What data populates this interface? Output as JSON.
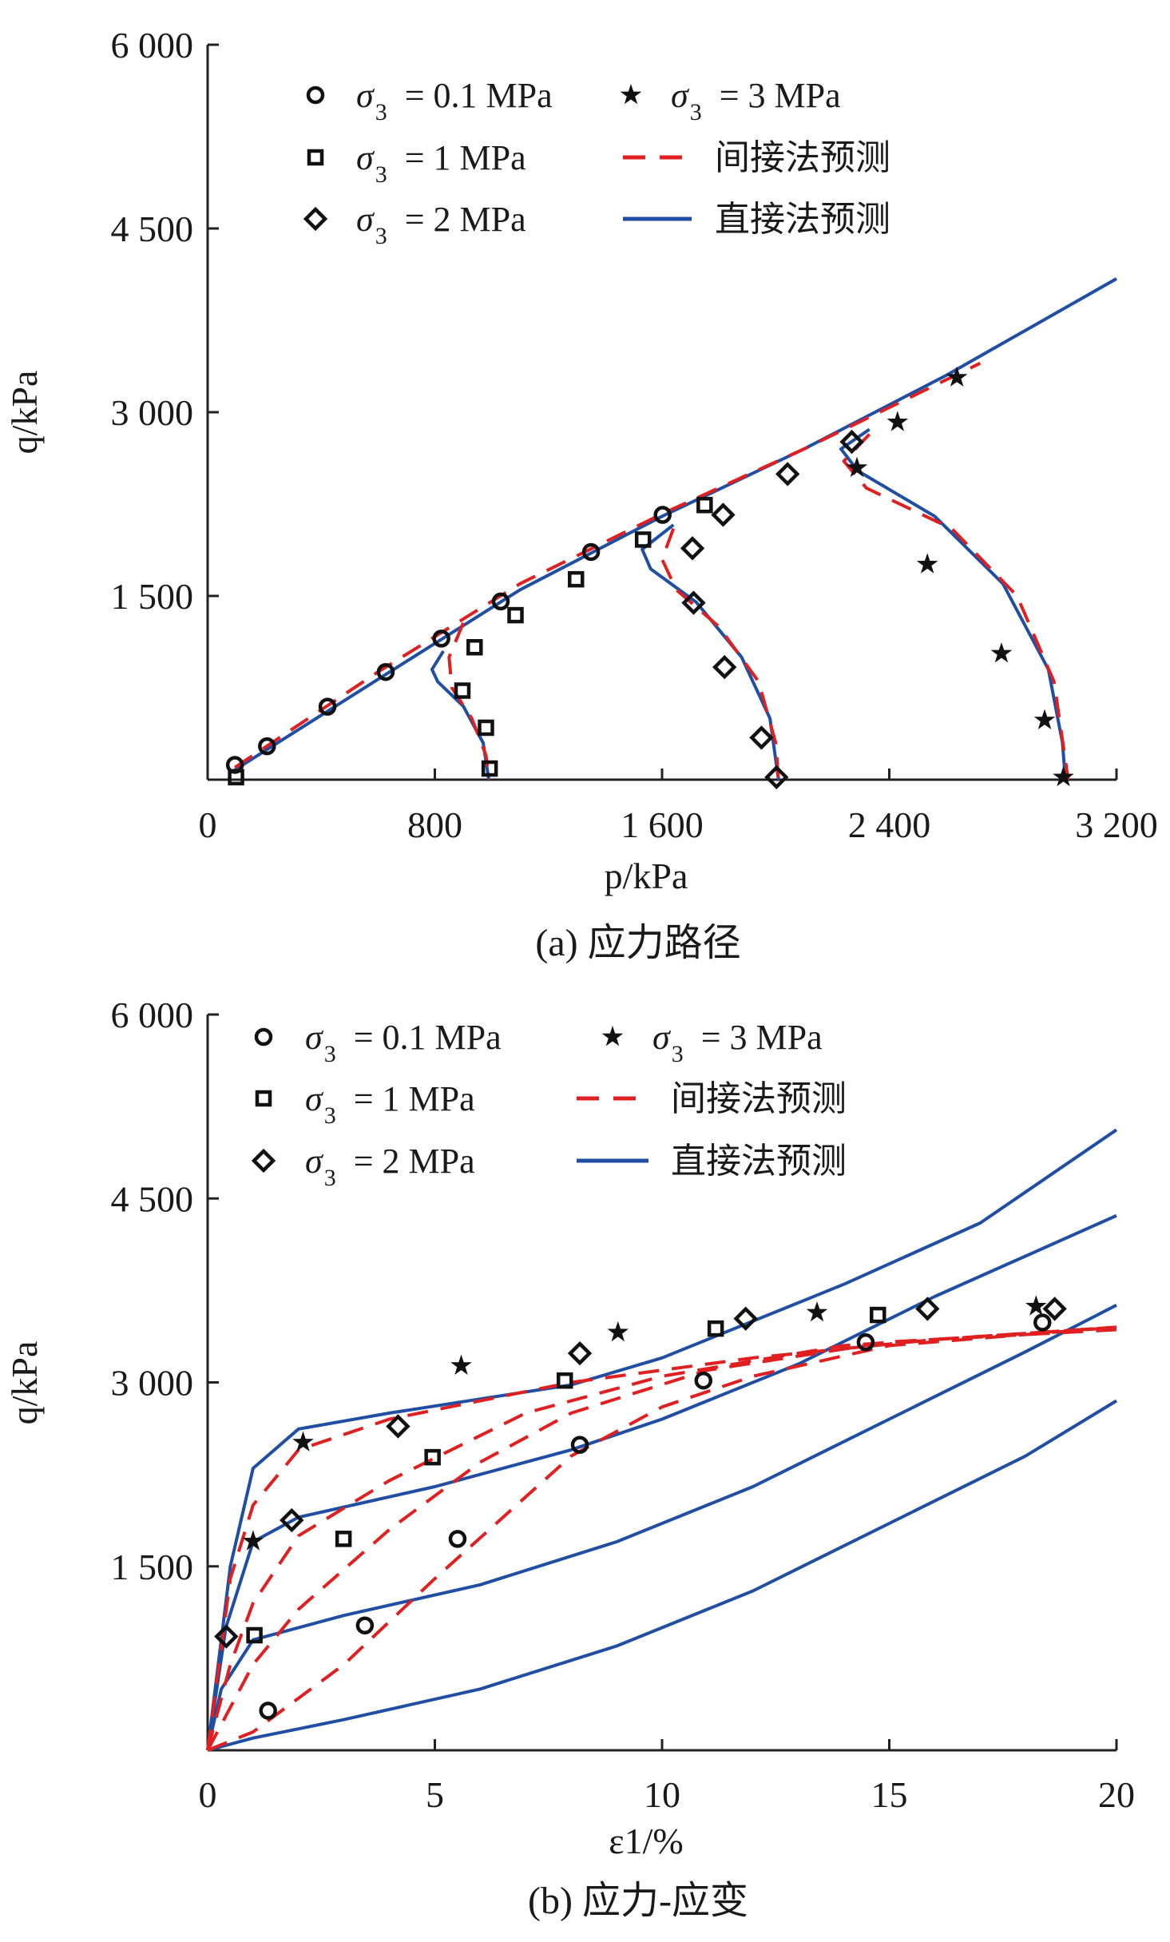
{
  "colors": {
    "indirect": "#e02020",
    "direct": "#1f4ea3",
    "markers": "#111111"
  },
  "chart_data": [
    {
      "type": "scatter",
      "caption": "(a) 应力路径",
      "xlabel": "p/kPa",
      "ylabel": "q/kPa",
      "xlim": [
        0,
        3200
      ],
      "ylim": [
        0,
        6000
      ],
      "xticks": [
        0,
        800,
        1600,
        2400,
        3200
      ],
      "xtick_labels": [
        "0",
        "800",
        "1 600",
        "2 400",
        "3 200"
      ],
      "yticks": [
        1500,
        3000,
        4500,
        6000
      ],
      "ytick_labels": [
        "1 500",
        "3 000",
        "4 500",
        "6 000"
      ],
      "legend": {
        "placement": "top-left",
        "entries": [
          {
            "marker": "circle",
            "symbol": "σ",
            "sub": "3",
            "text": "= 0.1 MPa"
          },
          {
            "marker": "square",
            "symbol": "σ",
            "sub": "3",
            "text": "= 1 MPa"
          },
          {
            "marker": "diamond",
            "symbol": "σ",
            "sub": "3",
            "text": "= 2 MPa"
          },
          {
            "marker": "star",
            "symbol": "σ",
            "sub": "3",
            "text": "= 3 MPa"
          },
          {
            "marker": "dashed",
            "text": "间接法预测"
          },
          {
            "marker": "solid",
            "text": "直接法预测"
          }
        ]
      },
      "series": [
        {
          "name": "σ3 = 0.1 MPa",
          "marker": "circle",
          "points": [
            [
              96,
              121
            ],
            [
              209,
              273
            ],
            [
              422,
              596
            ],
            [
              627,
              879
            ],
            [
              823,
              1152
            ],
            [
              1032,
              1455
            ],
            [
              1350,
              1859
            ],
            [
              1602,
              2162
            ]
          ]
        },
        {
          "name": "σ3 = 1 MPa",
          "marker": "square",
          "points": [
            [
              100,
              20
            ],
            [
              993,
              91
            ],
            [
              980,
              424
            ],
            [
              897,
              727
            ],
            [
              940,
              1081
            ],
            [
              1084,
              1343
            ],
            [
              1297,
              1636
            ],
            [
              1533,
              1960
            ],
            [
              1750,
              2242
            ]
          ]
        },
        {
          "name": "σ3 = 2 MPa",
          "marker": "diamond",
          "points": [
            [
              2003,
              20
            ],
            [
              1950,
              343
            ],
            [
              1820,
              919
            ],
            [
              1711,
              1444
            ],
            [
              1707,
              1889
            ],
            [
              1815,
              2162
            ],
            [
              2042,
              2495
            ],
            [
              2268,
              2758
            ]
          ]
        },
        {
          "name": "σ3 = 3 MPa",
          "marker": "star",
          "points": [
            [
              3013,
              20
            ],
            [
              2947,
              485
            ],
            [
              2795,
              1030
            ],
            [
              2534,
              1758
            ],
            [
              2286,
              2545
            ],
            [
              2429,
              2919
            ],
            [
              2638,
              3283
            ]
          ]
        }
      ],
      "lines": [
        {
          "name": "直接法预测 envelope",
          "style": "solid",
          "points": [
            [
              96,
              80
            ],
            [
              600,
              820
            ],
            [
              1100,
              1550
            ],
            [
              1600,
              2150
            ],
            [
              2100,
              2700
            ],
            [
              2600,
              3300
            ],
            [
              3200,
              4090
            ]
          ]
        },
        {
          "name": "直接法预测 σ3=1",
          "style": "solid",
          "points": [
            [
              830,
              1050
            ],
            [
              790,
              900
            ],
            [
              810,
              800
            ],
            [
              900,
              600
            ],
            [
              970,
              300
            ],
            [
              990,
              0
            ]
          ]
        },
        {
          "name": "直接法预测 σ3=2",
          "style": "solid",
          "points": [
            [
              1640,
              2080
            ],
            [
              1530,
              1880
            ],
            [
              1560,
              1720
            ],
            [
              1720,
              1450
            ],
            [
              1880,
              1000
            ],
            [
              1980,
              500
            ],
            [
              2010,
              0
            ]
          ]
        },
        {
          "name": "直接法预测 σ3=3",
          "style": "solid",
          "points": [
            [
              2330,
              2860
            ],
            [
              2230,
              2700
            ],
            [
              2290,
              2520
            ],
            [
              2560,
              2150
            ],
            [
              2800,
              1600
            ],
            [
              2960,
              900
            ],
            [
              3010,
              300
            ],
            [
              3020,
              0
            ]
          ]
        },
        {
          "name": "间接法预测 envelope",
          "style": "dashed",
          "points": [
            [
              96,
              100
            ],
            [
              600,
              880
            ],
            [
              1100,
              1600
            ],
            [
              1600,
              2170
            ],
            [
              2100,
              2700
            ],
            [
              2720,
              3400
            ]
          ]
        },
        {
          "name": "间接法预测 σ3=1",
          "style": "dashed",
          "points": [
            [
              900,
              1280
            ],
            [
              850,
              1000
            ],
            [
              860,
              750
            ],
            [
              930,
              500
            ],
            [
              980,
              200
            ],
            [
              990,
              0
            ]
          ]
        },
        {
          "name": "间接法预测 σ3=2",
          "style": "dashed",
          "points": [
            [
              1640,
              2050
            ],
            [
              1600,
              1800
            ],
            [
              1650,
              1550
            ],
            [
              1800,
              1250
            ],
            [
              1940,
              800
            ],
            [
              2000,
              300
            ],
            [
              2010,
              0
            ]
          ]
        },
        {
          "name": "间接法预测 σ3=3",
          "style": "dashed",
          "points": [
            [
              2330,
              2820
            ],
            [
              2240,
              2600
            ],
            [
              2320,
              2380
            ],
            [
              2620,
              2050
            ],
            [
              2850,
              1500
            ],
            [
              2980,
              800
            ],
            [
              3030,
              0
            ]
          ]
        }
      ]
    },
    {
      "type": "scatter",
      "caption": "(b) 应力-应变",
      "xlabel": "ε1/%",
      "xlabel_symbol": "ε",
      "xlabel_sub": "1",
      "xlabel_unit": "/%",
      "ylabel": "q/kPa",
      "xlim": [
        0,
        20
      ],
      "ylim": [
        0,
        6000
      ],
      "xticks": [
        0,
        5,
        10,
        15,
        20
      ],
      "xtick_labels": [
        "0",
        "5",
        "10",
        "15",
        "20"
      ],
      "yticks": [
        1500,
        3000,
        4500,
        6000
      ],
      "ytick_labels": [
        "1 500",
        "3 000",
        "4 500",
        "6 000"
      ],
      "legend": {
        "placement": "top-left",
        "entries": [
          {
            "marker": "circle",
            "symbol": "σ",
            "sub": "3",
            "text": "= 0.1 MPa"
          },
          {
            "marker": "square",
            "symbol": "σ",
            "sub": "3",
            "text": "= 1 MPa"
          },
          {
            "marker": "diamond",
            "symbol": "σ",
            "sub": "3",
            "text": "= 2 MPa"
          },
          {
            "marker": "star",
            "symbol": "σ",
            "sub": "3",
            "text": "= 3 MPa"
          },
          {
            "marker": "dashed",
            "text": "间接法预测"
          },
          {
            "marker": "solid",
            "text": "直接法预测"
          }
        ]
      },
      "series": [
        {
          "name": "σ3 = 0.1 MPa",
          "marker": "circle",
          "points": [
            [
              1.33,
              323
            ],
            [
              3.46,
              1018
            ],
            [
              5.5,
              1724
            ],
            [
              8.19,
              2491
            ],
            [
              10.91,
              3015
            ],
            [
              14.48,
              3328
            ],
            [
              18.37,
              3489
            ]
          ]
        },
        {
          "name": "σ3 = 1 MPa",
          "marker": "square",
          "points": [
            [
              1.03,
              938
            ],
            [
              2.99,
              1724
            ],
            [
              4.95,
              2390
            ],
            [
              7.86,
              3015
            ],
            [
              11.18,
              3439
            ],
            [
              14.75,
              3550
            ]
          ]
        },
        {
          "name": "σ3 = 2 MPa",
          "marker": "diamond",
          "points": [
            [
              0.41,
              928
            ],
            [
              1.85,
              1876
            ],
            [
              4.19,
              2642
            ],
            [
              8.19,
              3237
            ],
            [
              11.84,
              3520
            ],
            [
              15.84,
              3600
            ],
            [
              18.64,
              3600
            ]
          ]
        },
        {
          "name": "σ3 = 3 MPa",
          "marker": "star",
          "points": [
            [
              1.0,
              1704
            ],
            [
              2.1,
              2511
            ],
            [
              5.58,
              3136
            ],
            [
              9.03,
              3408
            ],
            [
              13.41,
              3570
            ],
            [
              18.23,
              3620
            ]
          ]
        }
      ],
      "lines": [
        {
          "name": "直接法预测 σ3=3",
          "style": "solid",
          "points": [
            [
              0,
              0
            ],
            [
              0.5,
              1500
            ],
            [
              1,
              2300
            ],
            [
              2,
              2620
            ],
            [
              4,
              2750
            ],
            [
              8,
              2980
            ],
            [
              10,
              3200
            ],
            [
              14,
              3800
            ],
            [
              17,
              4300
            ],
            [
              20,
              5060
            ]
          ]
        },
        {
          "name": "直接法预测 σ3=2",
          "style": "solid",
          "points": [
            [
              0,
              0
            ],
            [
              0.4,
              1000
            ],
            [
              1,
              1700
            ],
            [
              2,
              1900
            ],
            [
              5,
              2150
            ],
            [
              8,
              2450
            ],
            [
              10,
              2700
            ],
            [
              13,
              3150
            ],
            [
              16,
              3700
            ],
            [
              20,
              4360
            ]
          ]
        },
        {
          "name": "直接法预测 σ3=1",
          "style": "solid",
          "points": [
            [
              0,
              0
            ],
            [
              0.3,
              500
            ],
            [
              1,
              900
            ],
            [
              3,
              1100
            ],
            [
              6,
              1350
            ],
            [
              9,
              1700
            ],
            [
              12,
              2150
            ],
            [
              15,
              2700
            ],
            [
              18,
              3250
            ],
            [
              20,
              3630
            ]
          ]
        },
        {
          "name": "直接法预测 σ3=0.1",
          "style": "solid",
          "points": [
            [
              0,
              0
            ],
            [
              1,
              100
            ],
            [
              3,
              250
            ],
            [
              6,
              500
            ],
            [
              9,
              850
            ],
            [
              12,
              1300
            ],
            [
              15,
              1850
            ],
            [
              18,
              2400
            ],
            [
              20,
              2850
            ]
          ]
        },
        {
          "name": "间接法预测 σ3=3",
          "style": "dashed",
          "points": [
            [
              0,
              0
            ],
            [
              0.5,
              1400
            ],
            [
              1,
              2000
            ],
            [
              2,
              2450
            ],
            [
              4,
              2700
            ],
            [
              8,
              3000
            ],
            [
              12,
              3200
            ],
            [
              16,
              3350
            ],
            [
              20,
              3450
            ]
          ]
        },
        {
          "name": "间接法预测 σ3=2",
          "style": "dashed",
          "points": [
            [
              0,
              0
            ],
            [
              0.5,
              700
            ],
            [
              1,
              1200
            ],
            [
              2,
              1750
            ],
            [
              4,
              2200
            ],
            [
              7,
              2750
            ],
            [
              10,
              3050
            ],
            [
              14,
              3300
            ],
            [
              20,
              3450
            ]
          ]
        },
        {
          "name": "间接法预测 σ3=1",
          "style": "dashed",
          "points": [
            [
              0,
              0
            ],
            [
              1,
              700
            ],
            [
              2,
              1150
            ],
            [
              4,
              1800
            ],
            [
              6,
              2350
            ],
            [
              8,
              2750
            ],
            [
              11,
              3100
            ],
            [
              15,
              3330
            ],
            [
              20,
              3430
            ]
          ]
        },
        {
          "name": "间接法预测 σ3=0.1",
          "style": "dashed",
          "points": [
            [
              0,
              0
            ],
            [
              1,
              150
            ],
            [
              3,
              700
            ],
            [
              5,
              1400
            ],
            [
              8,
              2400
            ],
            [
              10,
              2800
            ],
            [
              12,
              3050
            ],
            [
              15,
              3300
            ],
            [
              20,
              3450
            ]
          ]
        }
      ]
    }
  ]
}
